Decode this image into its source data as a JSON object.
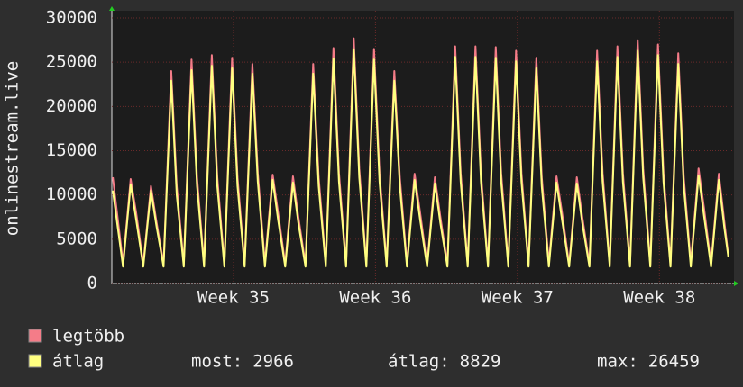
{
  "chart_data": {
    "type": "line",
    "ylabel": "onlinestream.live",
    "x": [
      0.05,
      0.55,
      0.93,
      1.2,
      1.55,
      1.93,
      2.2,
      2.55,
      2.93,
      3.2,
      3.55,
      3.93,
      4.2,
      4.55,
      4.93,
      5.2,
      5.55,
      5.93,
      6.2,
      6.55,
      6.93,
      7.2,
      7.55,
      7.93,
      8.2,
      8.55,
      8.93,
      9.2,
      9.55,
      9.93,
      10.2,
      10.55,
      10.93,
      11.2,
      11.55,
      11.93,
      12.2,
      12.55,
      12.93,
      13.2,
      13.55,
      13.93,
      14.2,
      14.55,
      14.93,
      15.2,
      15.55,
      15.93,
      16.2,
      16.55,
      16.93,
      17.2,
      17.55,
      17.93,
      18.2,
      18.55,
      18.93,
      19.2,
      19.55,
      19.93,
      20.2,
      20.55,
      20.93,
      21.2,
      21.55,
      21.93,
      22.2,
      22.55,
      22.93,
      23.2,
      23.55,
      23.93,
      24.2,
      24.55,
      24.93,
      25.2,
      25.55,
      25.93,
      26.2,
      26.55,
      26.93,
      27.2,
      27.55,
      27.93,
      28.2,
      28.55,
      28.93,
      29.2,
      29.55,
      29.93,
      30.2,
      30.4
    ],
    "series": [
      {
        "name": "legtöbb",
        "color": "#f47c88",
        "values": [
          12000,
          2300,
          11800,
          8000,
          2200,
          11000,
          7000,
          2200,
          24000,
          11000,
          2200,
          25300,
          12000,
          2200,
          25800,
          12000,
          2200,
          25500,
          12000,
          2200,
          24800,
          12500,
          2300,
          12300,
          8000,
          2200,
          12100,
          7500,
          2200,
          24800,
          12000,
          2200,
          26600,
          12500,
          2200,
          27700,
          13000,
          2200,
          26500,
          12500,
          2200,
          24000,
          12000,
          2300,
          12400,
          8000,
          2200,
          12000,
          7500,
          2200,
          26800,
          12500,
          2200,
          26800,
          12500,
          2200,
          26700,
          12500,
          2200,
          26300,
          12500,
          2200,
          25500,
          12000,
          2300,
          12100,
          8000,
          2200,
          12000,
          7500,
          2200,
          26300,
          12500,
          2200,
          26800,
          12500,
          2200,
          27500,
          13000,
          2200,
          27000,
          12500,
          2200,
          26000,
          12000,
          2300,
          13000,
          8500,
          2200,
          12400,
          7000,
          3100
        ]
      },
      {
        "name": "átlag",
        "color": "#ffff80",
        "values": [
          10500,
          1900,
          11200,
          7200,
          1900,
          10500,
          6500,
          1900,
          22900,
          10000,
          1900,
          24100,
          11000,
          1900,
          24600,
          11000,
          1900,
          24300,
          11000,
          1900,
          23700,
          11500,
          1900,
          11700,
          7200,
          1900,
          11400,
          6800,
          1900,
          23700,
          11000,
          1900,
          25400,
          11500,
          1900,
          26459,
          12000,
          1900,
          25300,
          11500,
          1900,
          22900,
          11000,
          1900,
          11700,
          7200,
          1900,
          11300,
          6800,
          1900,
          25600,
          11500,
          1900,
          25600,
          11500,
          1900,
          25500,
          11500,
          1900,
          25100,
          11500,
          1900,
          24300,
          11000,
          1900,
          11400,
          7200,
          1900,
          11300,
          6800,
          1900,
          25100,
          11500,
          1900,
          25600,
          11500,
          1900,
          26300,
          12000,
          1900,
          25800,
          11500,
          1900,
          24800,
          11000,
          1900,
          12200,
          7600,
          1900,
          11700,
          6300,
          2966
        ]
      }
    ],
    "xlim": [
      0,
      30.5
    ],
    "xticks": [
      {
        "value": 6,
        "label": "Week 35"
      },
      {
        "value": 13,
        "label": "Week 36"
      },
      {
        "value": 20,
        "label": "Week 37"
      },
      {
        "value": 27,
        "label": "Week 38"
      }
    ],
    "ylim": [
      0,
      30000
    ],
    "yticks": [
      0,
      5000,
      10000,
      15000,
      20000,
      25000,
      30000
    ],
    "grid": true,
    "stats": [
      {
        "label": "most:",
        "value": 2966
      },
      {
        "label": "átlag:",
        "value": 8829
      },
      {
        "label": "max:",
        "value": 26459
      }
    ]
  }
}
